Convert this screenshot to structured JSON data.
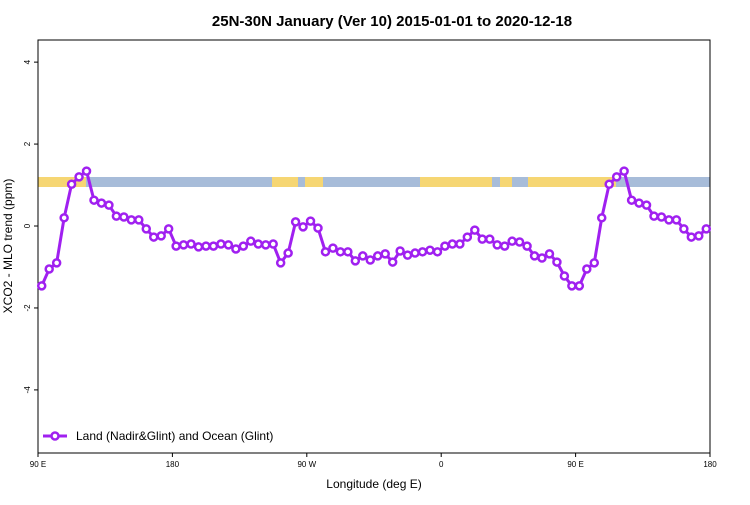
{
  "chart_data": {
    "type": "line",
    "title": "25N-30N January (Ver 10)   2015-01-01 to 2020-12-18",
    "x_label": "Longitude (deg E)",
    "y_label": "XCO2 - MLO trend (ppm)",
    "xlim": [
      90,
      540
    ],
    "ylim": [
      -5.54,
      4.54
    ],
    "xticks": [
      {
        "value": 90,
        "label": "90 E"
      },
      180,
      {
        "value": 270,
        "label": "90 W"
      },
      {
        "value": 360,
        "label": "0"
      },
      {
        "value": 450,
        "label": "90 E"
      },
      {
        "value": 540,
        "label": "180"
      }
    ],
    "yticks": [
      -4,
      -2,
      0,
      2,
      4
    ],
    "legend": "bottom-left",
    "x": [
      92.5,
      97.5,
      102.5,
      107.5,
      112.5,
      117.5,
      122.5,
      127.5,
      132.5,
      137.5,
      142.5,
      147.5,
      152.5,
      157.5,
      162.5,
      167.5,
      172.5,
      177.5,
      182.5,
      187.5,
      192.5,
      197.5,
      202.5,
      207.5,
      212.5,
      217.5,
      222.5,
      227.5,
      232.5,
      237.5,
      242.5,
      247.5,
      252.5,
      257.5,
      262.5,
      267.5,
      272.5,
      277.5,
      282.5,
      287.5,
      292.5,
      297.5,
      302.5,
      307.5,
      312.5,
      317.5,
      322.5,
      327.5,
      332.5,
      337.5,
      342.5,
      347.5,
      352.5,
      357.5,
      362.5,
      367.5,
      372.5,
      377.5,
      382.5,
      387.5,
      392.5,
      397.5,
      402.5,
      407.5,
      412.5,
      417.5,
      422.5,
      427.5,
      432.5,
      437.5,
      442.5,
      447.5,
      452.5,
      457.5,
      462.5,
      467.5,
      472.5,
      477.5,
      482.5,
      487.5,
      492.5,
      497.5,
      502.5,
      507.5,
      512.5,
      517.5,
      522.5,
      527.5,
      532.5,
      537.5
    ],
    "series": [
      {
        "name": "Land (Nadir&Glint) and Ocean (Glint)",
        "color": "#a020f0",
        "values": [
          -1.46,
          -1.05,
          -0.9,
          0.2,
          1.02,
          1.2,
          1.34,
          0.63,
          0.56,
          0.51,
          0.24,
          0.22,
          0.15,
          0.15,
          -0.07,
          -0.27,
          -0.24,
          -0.07,
          -0.49,
          -0.46,
          -0.44,
          -0.51,
          -0.49,
          -0.49,
          -0.44,
          -0.46,
          -0.56,
          -0.49,
          -0.37,
          -0.44,
          -0.46,
          -0.44,
          -0.9,
          -0.66,
          0.1,
          -0.02,
          0.12,
          -0.05,
          -0.63,
          -0.54,
          -0.63,
          -0.63,
          -0.85,
          -0.73,
          -0.83,
          -0.73,
          -0.68,
          -0.88,
          -0.61,
          -0.71,
          -0.66,
          -0.63,
          -0.59,
          -0.63,
          -0.49,
          -0.44,
          -0.44,
          -0.27,
          -0.1,
          -0.32,
          -0.32,
          -0.46,
          -0.49,
          -0.37,
          -0.39,
          -0.49,
          -0.73,
          -0.78,
          -0.68,
          -0.88,
          -1.22,
          -1.46,
          -1.46,
          -1.05,
          -0.9,
          0.2,
          1.02,
          1.2,
          1.34,
          0.63,
          0.56,
          0.51,
          0.24,
          0.22,
          0.15,
          0.15,
          -0.07,
          -0.27,
          -0.24,
          -0.07
        ]
      }
    ]
  }
}
